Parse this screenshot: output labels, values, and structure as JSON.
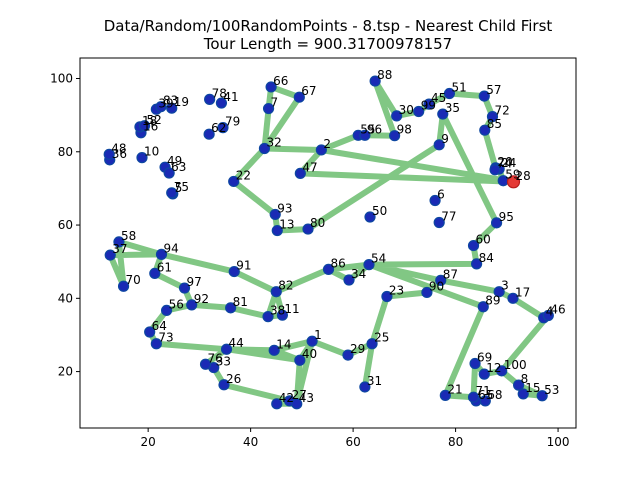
{
  "chart_data": {
    "type": "scatter",
    "title_line1": "Data/Random/100RandomPoints - 8.tsp - Nearest Child First",
    "title_line2": "Tour Length = 900.31700978157",
    "xlim": [
      6.7,
      103.5
    ],
    "ylim": [
      4.6,
      105.6
    ],
    "xticks": [
      20,
      40,
      60,
      80,
      100
    ],
    "yticks": [
      20,
      40,
      60,
      80,
      100
    ],
    "grid": false,
    "start_city": "28",
    "colors": {
      "tour": "#81c784",
      "city": "#1a2ab5",
      "start": "#e53935"
    },
    "cities": [
      {
        "label": "1",
        "x": 52.0,
        "y": 28.3
      },
      {
        "label": "2",
        "x": 53.8,
        "y": 80.5
      },
      {
        "label": "3",
        "x": 88.5,
        "y": 41.8
      },
      {
        "label": "4",
        "x": 97.2,
        "y": 34.7
      },
      {
        "label": "5",
        "x": 24.8,
        "y": 68.5
      },
      {
        "label": "6",
        "x": 76.0,
        "y": 66.7
      },
      {
        "label": "7",
        "x": 43.5,
        "y": 91.8
      },
      {
        "label": "8",
        "x": 92.3,
        "y": 16.3
      },
      {
        "label": "9",
        "x": 76.8,
        "y": 81.9
      },
      {
        "label": "10",
        "x": 18.8,
        "y": 78.4
      },
      {
        "label": "11",
        "x": 46.2,
        "y": 35.4
      },
      {
        "label": "12",
        "x": 85.6,
        "y": 19.3
      },
      {
        "label": "13",
        "x": 45.2,
        "y": 58.5
      },
      {
        "label": "14",
        "x": 44.6,
        "y": 25.8
      },
      {
        "label": "15",
        "x": 93.2,
        "y": 13.9
      },
      {
        "label": "16",
        "x": 18.6,
        "y": 85.2
      },
      {
        "label": "17",
        "x": 91.2,
        "y": 40.0
      },
      {
        "label": "18",
        "x": 18.4,
        "y": 86.8
      },
      {
        "label": "19",
        "x": 24.6,
        "y": 91.9
      },
      {
        "label": "20",
        "x": 87.8,
        "y": 75.6
      },
      {
        "label": "21",
        "x": 78.0,
        "y": 13.5
      },
      {
        "label": "22",
        "x": 36.7,
        "y": 71.9
      },
      {
        "label": "23",
        "x": 66.6,
        "y": 40.5
      },
      {
        "label": "24",
        "x": 88.5,
        "y": 75.3
      },
      {
        "label": "25",
        "x": 63.7,
        "y": 27.6
      },
      {
        "label": "26",
        "x": 34.8,
        "y": 16.4
      },
      {
        "label": "27",
        "x": 47.6,
        "y": 12.0
      },
      {
        "label": "28",
        "x": 91.3,
        "y": 71.8
      },
      {
        "label": "29",
        "x": 59.0,
        "y": 24.5
      },
      {
        "label": "30",
        "x": 68.5,
        "y": 89.8
      },
      {
        "label": "31",
        "x": 62.3,
        "y": 15.8
      },
      {
        "label": "32",
        "x": 42.7,
        "y": 80.9
      },
      {
        "label": "33",
        "x": 32.8,
        "y": 21.1
      },
      {
        "label": "34",
        "x": 59.2,
        "y": 45.0
      },
      {
        "label": "35",
        "x": 77.5,
        "y": 90.3
      },
      {
        "label": "36",
        "x": 12.5,
        "y": 77.8
      },
      {
        "label": "37",
        "x": 12.6,
        "y": 51.8
      },
      {
        "label": "38",
        "x": 43.4,
        "y": 35.0
      },
      {
        "label": "39",
        "x": 21.6,
        "y": 91.6
      },
      {
        "label": "40",
        "x": 49.6,
        "y": 23.1
      },
      {
        "label": "41",
        "x": 34.3,
        "y": 93.3
      },
      {
        "label": "42",
        "x": 45.1,
        "y": 11.2
      },
      {
        "label": "43",
        "x": 49.0,
        "y": 11.2
      },
      {
        "label": "44",
        "x": 35.3,
        "y": 26.1
      },
      {
        "label": "45",
        "x": 74.8,
        "y": 93.0
      },
      {
        "label": "46",
        "x": 98.1,
        "y": 35.3
      },
      {
        "label": "47",
        "x": 49.7,
        "y": 74.1
      },
      {
        "label": "48",
        "x": 12.4,
        "y": 79.3
      },
      {
        "label": "49",
        "x": 23.3,
        "y": 75.8
      },
      {
        "label": "50",
        "x": 63.3,
        "y": 62.2
      },
      {
        "label": "51",
        "x": 78.8,
        "y": 95.9
      },
      {
        "label": "52",
        "x": 19.3,
        "y": 87.1
      },
      {
        "label": "53",
        "x": 96.9,
        "y": 13.4
      },
      {
        "label": "54",
        "x": 63.1,
        "y": 49.2
      },
      {
        "label": "55",
        "x": 61.0,
        "y": 84.5
      },
      {
        "label": "56",
        "x": 23.6,
        "y": 36.7
      },
      {
        "label": "57",
        "x": 85.6,
        "y": 95.2
      },
      {
        "label": "58",
        "x": 14.3,
        "y": 55.4
      },
      {
        "label": "59",
        "x": 89.3,
        "y": 72.1
      },
      {
        "label": "60",
        "x": 83.5,
        "y": 54.4
      },
      {
        "label": "61",
        "x": 21.3,
        "y": 46.8
      },
      {
        "label": "62",
        "x": 31.9,
        "y": 84.8
      },
      {
        "label": "63",
        "x": 24.1,
        "y": 74.2
      },
      {
        "label": "64",
        "x": 20.3,
        "y": 30.8
      },
      {
        "label": "65",
        "x": 84.0,
        "y": 12.0
      },
      {
        "label": "66",
        "x": 44.0,
        "y": 97.7
      },
      {
        "label": "67",
        "x": 49.5,
        "y": 94.9
      },
      {
        "label": "68",
        "x": 85.8,
        "y": 12.0
      },
      {
        "label": "69",
        "x": 83.8,
        "y": 22.2
      },
      {
        "label": "70",
        "x": 15.2,
        "y": 43.3
      },
      {
        "label": "71",
        "x": 83.5,
        "y": 13.0
      },
      {
        "label": "72",
        "x": 87.2,
        "y": 89.6
      },
      {
        "label": "73",
        "x": 21.6,
        "y": 27.6
      },
      {
        "label": "74",
        "x": 87.7,
        "y": 75.1
      },
      {
        "label": "75",
        "x": 24.6,
        "y": 68.8
      },
      {
        "label": "76",
        "x": 31.2,
        "y": 22.0
      },
      {
        "label": "77",
        "x": 76.8,
        "y": 60.7
      },
      {
        "label": "78",
        "x": 32.0,
        "y": 94.3
      },
      {
        "label": "79",
        "x": 34.6,
        "y": 86.6
      },
      {
        "label": "80",
        "x": 51.2,
        "y": 58.9
      },
      {
        "label": "81",
        "x": 36.1,
        "y": 37.4
      },
      {
        "label": "82",
        "x": 45.0,
        "y": 41.8
      },
      {
        "label": "83",
        "x": 22.5,
        "y": 92.3
      },
      {
        "label": "84",
        "x": 84.1,
        "y": 49.4
      },
      {
        "label": "85",
        "x": 85.7,
        "y": 85.9
      },
      {
        "label": "86",
        "x": 55.2,
        "y": 47.9
      },
      {
        "label": "87",
        "x": 77.1,
        "y": 44.9
      },
      {
        "label": "88",
        "x": 64.3,
        "y": 99.3
      },
      {
        "label": "89",
        "x": 85.4,
        "y": 37.7
      },
      {
        "label": "90",
        "x": 74.4,
        "y": 41.6
      },
      {
        "label": "91",
        "x": 36.8,
        "y": 47.3
      },
      {
        "label": "92",
        "x": 28.5,
        "y": 38.2
      },
      {
        "label": "93",
        "x": 44.8,
        "y": 62.9
      },
      {
        "label": "94",
        "x": 22.6,
        "y": 52.0
      },
      {
        "label": "95",
        "x": 88.0,
        "y": 60.6
      },
      {
        "label": "96",
        "x": 62.3,
        "y": 84.5
      },
      {
        "label": "97",
        "x": 27.1,
        "y": 42.8
      },
      {
        "label": "98",
        "x": 68.1,
        "y": 84.4
      },
      {
        "label": "99",
        "x": 72.8,
        "y": 91.0
      },
      {
        "label": "100",
        "x": 89.0,
        "y": 20.2
      }
    ],
    "tour": [
      "28",
      "59",
      "24",
      "74",
      "20",
      "85",
      "72",
      "57",
      "51",
      "45",
      "99",
      "30",
      "88",
      "98",
      "96",
      "55",
      "2",
      "47",
      "28",
      "28",
      "2",
      "32",
      "7",
      "66",
      "67",
      "32",
      "22",
      "93",
      "13",
      "80",
      "9",
      "35",
      "95",
      "60",
      "84",
      "54",
      "86",
      "82",
      "11",
      "38",
      "81",
      "92",
      "56",
      "64",
      "73",
      "44",
      "14",
      "40",
      "1",
      "43",
      "42",
      "27",
      "26",
      "33",
      "76",
      "44",
      "40",
      "14",
      "1",
      "29",
      "25",
      "31",
      "25",
      "23",
      "90",
      "87",
      "3",
      "17",
      "4",
      "46",
      "100",
      "8",
      "15",
      "53",
      "8",
      "100",
      "12",
      "69",
      "71",
      "65",
      "68",
      "71",
      "21",
      "89",
      "54",
      "34",
      "86",
      "82",
      "38",
      "11",
      "82",
      "91",
      "94",
      "61",
      "97",
      "92",
      "81",
      "38",
      "11",
      "82",
      "86",
      "34",
      "54",
      "87",
      "90",
      "23",
      "25",
      "29",
      "1",
      "40",
      "43",
      "42",
      "27",
      "26",
      "33",
      "76",
      "44",
      "73",
      "64",
      "56",
      "92",
      "97",
      "61",
      "94",
      "37",
      "70",
      "58",
      "94",
      "91",
      "82"
    ]
  }
}
